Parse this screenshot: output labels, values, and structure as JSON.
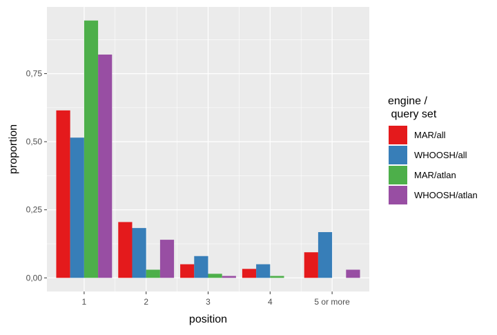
{
  "chart_data": {
    "type": "bar",
    "categories": [
      "1",
      "2",
      "3",
      "4",
      "5 or more"
    ],
    "series": [
      {
        "name": "MAR/all",
        "color": "#E41A1C",
        "values": [
          0.615,
          0.205,
          0.05,
          0.033,
          0.094
        ]
      },
      {
        "name": "WHOOSH/all",
        "color": "#377EB8",
        "values": [
          0.515,
          0.183,
          0.08,
          0.05,
          0.168
        ]
      },
      {
        "name": "MAR/atlan",
        "color": "#4DAF4A",
        "values": [
          0.945,
          0.03,
          0.015,
          0.007,
          0.0
        ]
      },
      {
        "name": "WHOOSH/atlan",
        "color": "#984EA3",
        "values": [
          0.82,
          0.14,
          0.007,
          0.0,
          0.03
        ]
      }
    ],
    "xlabel": "position",
    "ylabel": "proportion",
    "yticks": [
      0.0,
      0.25,
      0.5,
      0.75
    ],
    "ytick_labels": [
      "0,00",
      "0,25",
      "0,50",
      "0,75"
    ],
    "ylim": [
      -0.05,
      0.995
    ],
    "grid": true,
    "legend_title_lines": [
      "engine /",
      " query set"
    ],
    "legend_position": "right",
    "colors": {
      "panel_background": "#EBEBEB",
      "grid": "#FFFFFF",
      "tick_label": "#4D4D4D"
    }
  }
}
